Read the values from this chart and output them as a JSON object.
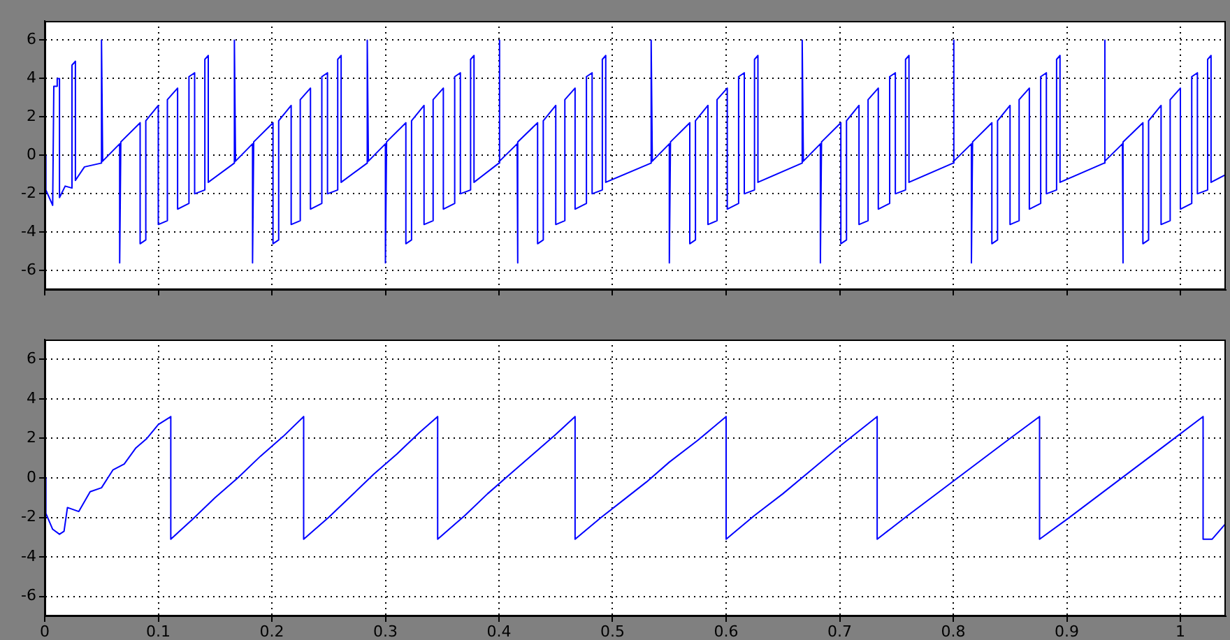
{
  "chart_data": [
    {
      "type": "line",
      "xlim": [
        0,
        1.04
      ],
      "xticks": [
        0,
        0.1,
        0.2,
        0.3,
        0.4,
        0.5,
        0.6,
        0.7,
        0.8,
        0.9,
        1
      ],
      "ylim": [
        -7,
        7
      ],
      "yticks": [
        -6,
        -4,
        -2,
        0,
        2,
        4,
        6
      ],
      "grid": true,
      "tick_labels": "y",
      "series": [
        {
          "color": "#0000ff",
          "x": [
            0,
            0.001,
            0.007,
            0.008,
            0.011,
            0.011,
            0.013,
            0.013,
            0.018,
            0.024,
            0.024,
            0.027,
            0.027,
            0.035,
            0.05,
            0.05,
            0.051,
            0.066,
            0.066,
            0.067,
            0.084,
            0.084,
            0.089,
            0.089,
            0.1,
            0.1,
            0.108,
            0.108,
            0.117,
            0.117,
            0.127,
            0.127,
            0.132,
            0.132,
            0.141,
            0.141,
            0.144,
            0.144,
            0.167,
            0.167,
            0.168,
            0.183,
            0.183,
            0.184,
            0.201,
            0.201,
            0.206,
            0.206,
            0.217,
            0.217,
            0.225,
            0.225,
            0.234,
            0.234,
            0.244,
            0.244,
            0.249,
            0.249,
            0.258,
            0.258,
            0.261,
            0.261,
            0.284,
            0.284,
            0.285,
            0.3,
            0.3,
            0.301,
            0.318,
            0.318,
            0.323,
            0.323,
            0.334,
            0.334,
            0.342,
            0.342,
            0.351,
            0.351,
            0.361,
            0.361,
            0.366,
            0.366,
            0.375,
            0.375,
            0.378,
            0.378,
            0.4,
            0.4,
            0.401,
            0.416,
            0.416,
            0.417,
            0.434,
            0.434,
            0.439,
            0.439,
            0.45,
            0.45,
            0.458,
            0.458,
            0.467,
            0.467,
            0.477,
            0.477,
            0.482,
            0.482,
            0.491,
            0.491,
            0.494,
            0.494,
            0.534,
            0.534,
            0.535,
            0.55,
            0.55,
            0.551,
            0.568,
            0.568,
            0.573,
            0.573,
            0.584,
            0.584,
            0.592,
            0.592,
            0.601,
            0.601,
            0.611,
            0.611,
            0.616,
            0.616,
            0.625,
            0.625,
            0.628,
            0.628,
            0.667,
            0.667,
            0.668,
            0.683,
            0.683,
            0.684,
            0.701,
            0.701,
            0.706,
            0.706,
            0.717,
            0.717,
            0.725,
            0.725,
            0.734,
            0.734,
            0.744,
            0.744,
            0.749,
            0.749,
            0.758,
            0.758,
            0.761,
            0.761,
            0.8,
            0.8,
            0.801,
            0.816,
            0.816,
            0.817,
            0.834,
            0.834,
            0.839,
            0.839,
            0.85,
            0.85,
            0.858,
            0.858,
            0.867,
            0.867,
            0.877,
            0.877,
            0.882,
            0.882,
            0.891,
            0.891,
            0.894,
            0.894,
            0.933,
            0.933,
            0.934,
            0.949,
            0.949,
            0.95,
            0.967,
            0.967,
            0.972,
            0.972,
            0.983,
            0.983,
            0.991,
            0.991,
            1.0,
            1.0,
            1.01,
            1.01,
            1.015,
            1.015,
            1.024,
            1.024,
            1.027,
            1.027,
            1.04
          ],
          "values": [
            0,
            -1.8,
            -2.6,
            3.6,
            3.6,
            4.0,
            4.0,
            -2.2,
            -1.6,
            -1.7,
            4.7,
            4.9,
            -1.3,
            -0.6,
            -0.4,
            6.0,
            -0.3,
            0.6,
            -5.6,
            0.7,
            1.7,
            -4.6,
            -4.4,
            1.8,
            2.6,
            -3.6,
            -3.4,
            2.9,
            3.5,
            -2.8,
            -2.5,
            4.1,
            4.3,
            -2.0,
            -1.8,
            5.0,
            5.2,
            -1.4,
            -0.4,
            6.0,
            -0.3,
            0.6,
            -5.6,
            0.7,
            1.7,
            -4.6,
            -4.4,
            1.8,
            2.6,
            -3.6,
            -3.4,
            2.9,
            3.5,
            -2.8,
            -2.5,
            4.1,
            4.3,
            -2.0,
            -1.8,
            5.0,
            5.2,
            -1.4,
            -0.4,
            6.0,
            -0.3,
            0.6,
            -5.6,
            0.7,
            1.7,
            -4.6,
            -4.4,
            1.8,
            2.6,
            -3.6,
            -3.4,
            2.9,
            3.5,
            -2.8,
            -2.5,
            4.1,
            4.3,
            -2.0,
            -1.8,
            5.0,
            5.2,
            -1.4,
            -0.4,
            6.0,
            -0.3,
            0.6,
            -5.6,
            0.7,
            1.7,
            -4.6,
            -4.4,
            1.8,
            2.6,
            -3.6,
            -3.4,
            2.9,
            3.5,
            -2.8,
            -2.5,
            4.1,
            4.3,
            -2.0,
            -1.8,
            5.0,
            5.2,
            -1.4,
            -0.4,
            6.0,
            -0.3,
            0.6,
            -5.6,
            0.7,
            1.7,
            -4.6,
            -4.4,
            1.8,
            2.6,
            -3.6,
            -3.4,
            2.9,
            3.5,
            -2.8,
            -2.5,
            4.1,
            4.3,
            -2.0,
            -1.8,
            5.0,
            5.2,
            -1.4,
            -0.4,
            6.0,
            -0.3,
            0.6,
            -5.6,
            0.7,
            1.7,
            -4.6,
            -4.4,
            1.8,
            2.6,
            -3.6,
            -3.4,
            2.9,
            3.5,
            -2.8,
            -2.5,
            4.1,
            4.3,
            -2.0,
            -1.8,
            5.0,
            5.2,
            -1.4,
            -0.4,
            6.0,
            -0.3,
            0.6,
            -5.6,
            0.7,
            1.7,
            -4.6,
            -4.4,
            1.8,
            2.6,
            -3.6,
            -3.4,
            2.9,
            3.5,
            -2.8,
            -2.5,
            4.1,
            4.3,
            -2.0,
            -1.8,
            5.0,
            5.2,
            -1.4,
            -0.4,
            6.0,
            -0.3,
            0.6,
            -5.6,
            0.7,
            1.7,
            -4.6,
            -4.4,
            1.8,
            2.6,
            -3.6,
            -3.4,
            2.9,
            3.5,
            -2.8,
            -2.5,
            4.1,
            4.3,
            -2.0,
            -1.8,
            5.0,
            5.2,
            -1.4,
            -1.0
          ]
        }
      ]
    },
    {
      "type": "line",
      "xlim": [
        0,
        1.04
      ],
      "xticks": [
        0,
        0.1,
        0.2,
        0.3,
        0.4,
        0.5,
        0.6,
        0.7,
        0.8,
        0.9,
        1
      ],
      "ylim": [
        -7,
        7
      ],
      "yticks": [
        -6,
        -4,
        -2,
        0,
        2,
        4,
        6
      ],
      "grid": true,
      "series": [
        {
          "color": "#0000ff",
          "x": [
            0,
            0.001,
            0.007,
            0.013,
            0.017,
            0.02,
            0.03,
            0.04,
            0.05,
            0.06,
            0.07,
            0.08,
            0.09,
            0.1,
            0.111,
            0.111,
            0.13,
            0.15,
            0.17,
            0.19,
            0.21,
            0.228,
            0.228,
            0.25,
            0.27,
            0.29,
            0.31,
            0.33,
            0.346,
            0.346,
            0.37,
            0.39,
            0.41,
            0.43,
            0.45,
            0.467,
            0.467,
            0.49,
            0.51,
            0.53,
            0.55,
            0.575,
            0.6,
            0.6,
            0.625,
            0.65,
            0.675,
            0.7,
            0.733,
            0.733,
            0.76,
            0.79,
            0.82,
            0.85,
            0.876,
            0.876,
            0.9,
            0.93,
            0.96,
            0.99,
            1.02,
            1.02,
            1.028,
            1.04
          ],
          "values": [
            0,
            -1.8,
            -2.6,
            -2.85,
            -2.7,
            -1.5,
            -1.7,
            -0.7,
            -0.5,
            0.4,
            0.7,
            1.5,
            2.0,
            2.7,
            3.1,
            -3.1,
            -2.1,
            -1.0,
            0.0,
            1.1,
            2.1,
            3.1,
            -3.1,
            -2.0,
            -0.9,
            0.2,
            1.2,
            2.3,
            3.1,
            -3.1,
            -1.9,
            -0.8,
            0.2,
            1.2,
            2.2,
            3.1,
            -3.1,
            -2.0,
            -1.1,
            -0.2,
            0.8,
            1.9,
            3.1,
            -3.1,
            -1.9,
            -0.8,
            0.4,
            1.6,
            3.1,
            -3.1,
            -1.9,
            -0.6,
            0.7,
            2.0,
            3.1,
            -3.1,
            -2.1,
            -0.8,
            0.5,
            1.8,
            3.1,
            -3.1,
            -3.1,
            -2.3
          ]
        }
      ]
    }
  ]
}
